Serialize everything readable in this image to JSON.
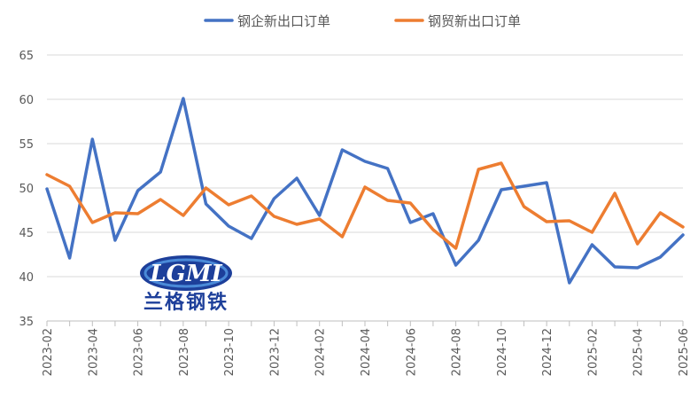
{
  "chart_data": {
    "type": "line",
    "title": "",
    "xlabel": "",
    "ylabel": "",
    "ylim": [
      35,
      65
    ],
    "yticks": [
      35,
      40,
      45,
      50,
      55,
      60,
      65
    ],
    "grid": "horizontal",
    "legend_position": "top",
    "x": [
      "2023-02",
      "2023-03",
      "2023-04",
      "2023-05",
      "2023-06",
      "2023-07",
      "2023-08",
      "2023-09",
      "2023-10",
      "2023-11",
      "2023-12",
      "2024-01",
      "2024-02",
      "2024-03",
      "2024-04",
      "2024-05",
      "2024-06",
      "2024-07",
      "2024-08",
      "2024-09",
      "2024-10",
      "2024-11",
      "2024-12",
      "2025-01",
      "2025-02",
      "2025-03",
      "2025-04",
      "2025-05",
      "2025-06"
    ],
    "xtick_labels": [
      "2023-02",
      "2023-04",
      "2023-06",
      "2023-08",
      "2023-10",
      "2023-12",
      "2024-02",
      "2024-04",
      "2024-06",
      "2024-08",
      "2024-10",
      "2024-12",
      "2025-02",
      "2025-04",
      "2025-06"
    ],
    "series": [
      {
        "name": "钢企新出口订单",
        "color": "#4472c4",
        "values": [
          49.9,
          42.1,
          55.5,
          44.1,
          49.7,
          51.8,
          60.1,
          48.2,
          45.7,
          44.3,
          48.8,
          51.1,
          46.9,
          54.3,
          53.0,
          52.2,
          46.1,
          47.1,
          41.3,
          44.1,
          49.8,
          50.2,
          50.6,
          39.3,
          43.6,
          41.1,
          41.0,
          42.2,
          44.7
        ]
      },
      {
        "name": "钢贸新出口订单",
        "color": "#ed7d31",
        "values": [
          51.5,
          50.2,
          46.1,
          47.2,
          47.1,
          48.7,
          46.9,
          50.0,
          48.1,
          49.1,
          46.8,
          45.9,
          46.5,
          44.5,
          50.1,
          48.6,
          48.3,
          45.3,
          43.2,
          52.1,
          52.8,
          47.9,
          46.2,
          46.3,
          45.0,
          49.4,
          43.7,
          47.2,
          45.6
        ]
      }
    ]
  },
  "logo": {
    "text": "LGMI",
    "cn_text": "兰格钢铁",
    "primary_color": "#1d3f9a",
    "accent_color": "#4a8ad8"
  }
}
